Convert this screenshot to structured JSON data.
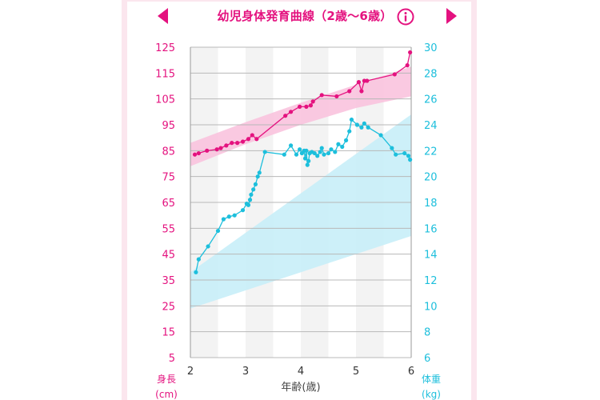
{
  "header": {
    "title": "幼児身体発育曲線（2歳〜6歳）",
    "prev_icon": "triangle-left-icon",
    "next_icon": "triangle-right-icon",
    "info_icon": "info-circle-icon"
  },
  "colors": {
    "height": "#e4127f",
    "weight": "#1dbfdc",
    "height_band": "#f9bfdc",
    "weight_band": "#c8eef8"
  },
  "chart_data": {
    "type": "line",
    "xlabel": "年齢(歳)",
    "xlim": [
      2,
      6
    ],
    "x_ticks": [
      "2",
      "3",
      "4",
      "5",
      "6"
    ],
    "left_axis": {
      "label_line1": "身長",
      "label_line2": "(cm)",
      "ylim": [
        5,
        125
      ],
      "ticks": [
        "125",
        "115",
        "105",
        "95",
        "85",
        "75",
        "65",
        "55",
        "45",
        "35",
        "25",
        "15",
        "5"
      ]
    },
    "right_axis": {
      "label_line1": "体重",
      "label_line2": "(kg)",
      "ylim": [
        6,
        30
      ],
      "ticks": [
        "30",
        "28",
        "26",
        "24",
        "22",
        "20",
        "18",
        "16",
        "14",
        "12",
        "10",
        "8",
        "6"
      ]
    },
    "height_band": {
      "x": [
        2,
        3,
        4,
        5,
        6
      ],
      "lower": [
        79,
        87.5,
        95,
        101.5,
        106
      ],
      "upper": [
        88,
        96,
        103.5,
        110.5,
        117.5
      ]
    },
    "weight_band": {
      "x": [
        2,
        6
      ],
      "lower": [
        9.8,
        15.4
      ],
      "upper": [
        12.6,
        24.8
      ]
    },
    "series": [
      {
        "axis": "left",
        "x": [
          2.08,
          2.15,
          2.3,
          2.48,
          2.55,
          2.65,
          2.75,
          2.85,
          2.95,
          3.05,
          3.12,
          3.2,
          3.72,
          3.82,
          3.98,
          4.1,
          4.18,
          4.22,
          4.38,
          4.65,
          4.88,
          5.05,
          5.1,
          5.15,
          5.2,
          5.7,
          5.93,
          5.98
        ],
        "y": [
          83.5,
          84,
          85,
          85.5,
          86,
          87,
          88,
          88,
          88.5,
          89.5,
          91,
          89.5,
          98.5,
          100,
          102,
          102,
          102.5,
          104,
          106.5,
          106,
          108,
          111.5,
          108,
          112,
          112,
          114.5,
          118,
          123
        ]
      },
      {
        "axis": "right",
        "x": [
          2.1,
          2.15,
          2.32,
          2.5,
          2.6,
          2.7,
          2.8,
          2.95,
          3.02,
          3.05,
          3.08,
          3.1,
          3.14,
          3.18,
          3.22,
          3.25,
          3.35,
          3.7,
          3.82,
          3.92,
          3.98,
          4.02,
          4.06,
          4.08,
          4.1,
          4.12,
          4.14,
          4.16,
          4.2,
          4.25,
          4.3,
          4.35,
          4.38,
          4.42,
          4.5,
          4.55,
          4.62,
          4.68,
          4.75,
          4.82,
          4.88,
          4.92,
          5.02,
          5.1,
          5.15,
          5.22,
          5.45,
          5.65,
          5.72,
          5.88,
          5.95,
          5.98
        ],
        "y": [
          12.6,
          13.6,
          14.6,
          15.8,
          16.7,
          16.9,
          17,
          17.4,
          17.9,
          17.8,
          18.2,
          18.6,
          19,
          19.4,
          20,
          20.3,
          21.9,
          21.7,
          22.4,
          21.7,
          22.1,
          21.8,
          22,
          21.4,
          22,
          20.9,
          21.2,
          21.8,
          21.9,
          21.8,
          21.6,
          21.9,
          22.2,
          21.7,
          21.8,
          22.1,
          21.9,
          22.5,
          22.3,
          22.8,
          23.5,
          24.4,
          24,
          23.8,
          24.1,
          23.8,
          23.2,
          22.2,
          21.7,
          21.8,
          21.6,
          21.3
        ]
      }
    ]
  }
}
